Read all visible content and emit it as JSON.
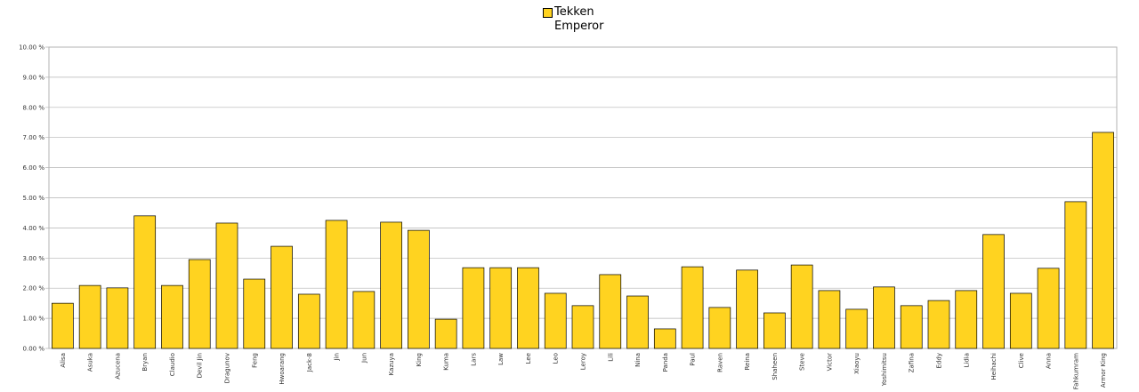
{
  "chart_data": {
    "type": "bar",
    "categories": [
      "Alisa",
      "Asuka",
      "Azucena",
      "Bryan",
      "Claudio",
      "Devil Jin",
      "Dragunov",
      "Feng",
      "Hwoarang",
      "Jack-8",
      "Jin",
      "Jun",
      "Kazuya",
      "King",
      "Kuma",
      "Lars",
      "Law",
      "Lee",
      "Leo",
      "Leroy",
      "Lili",
      "Nina",
      "Panda",
      "Paul",
      "Raven",
      "Reina",
      "Shaheen",
      "Steve",
      "Victor",
      "Xiaoyu",
      "Yoshimitsu",
      "Zafina",
      "Eddy",
      "Lidia",
      "Heihachi",
      "Clive",
      "Anna",
      "Fahkumram",
      "Armor King"
    ],
    "series": [
      {
        "name": "Tekken Emperor",
        "color": "#ffd320",
        "values": [
          1.5,
          2.09,
          2.01,
          4.4,
          2.09,
          2.95,
          4.16,
          2.3,
          3.39,
          1.8,
          4.25,
          1.89,
          4.19,
          3.92,
          0.97,
          2.68,
          2.68,
          2.68,
          1.83,
          1.42,
          2.45,
          1.74,
          0.65,
          2.71,
          1.36,
          2.6,
          1.18,
          2.77,
          1.92,
          1.3,
          2.04,
          1.42,
          1.59,
          1.92,
          3.78,
          1.83,
          2.66,
          4.87,
          7.17
        ]
      }
    ],
    "ylim": [
      0,
      10
    ],
    "yticks": [
      {
        "value": 0,
        "label": "0.00 %"
      },
      {
        "value": 1,
        "label": "1.00 %"
      },
      {
        "value": 2,
        "label": "2.00 %"
      },
      {
        "value": 3,
        "label": "3.00 %"
      },
      {
        "value": 4,
        "label": "4.00 %"
      },
      {
        "value": 5,
        "label": "5.00 %"
      },
      {
        "value": 6,
        "label": "6.00 %"
      },
      {
        "value": 7,
        "label": "7.00 %"
      },
      {
        "value": 8,
        "label": "8.00 %"
      },
      {
        "value": 9,
        "label": "9.00 %"
      },
      {
        "value": 10,
        "label": "10.00 %"
      }
    ],
    "grid": true
  }
}
